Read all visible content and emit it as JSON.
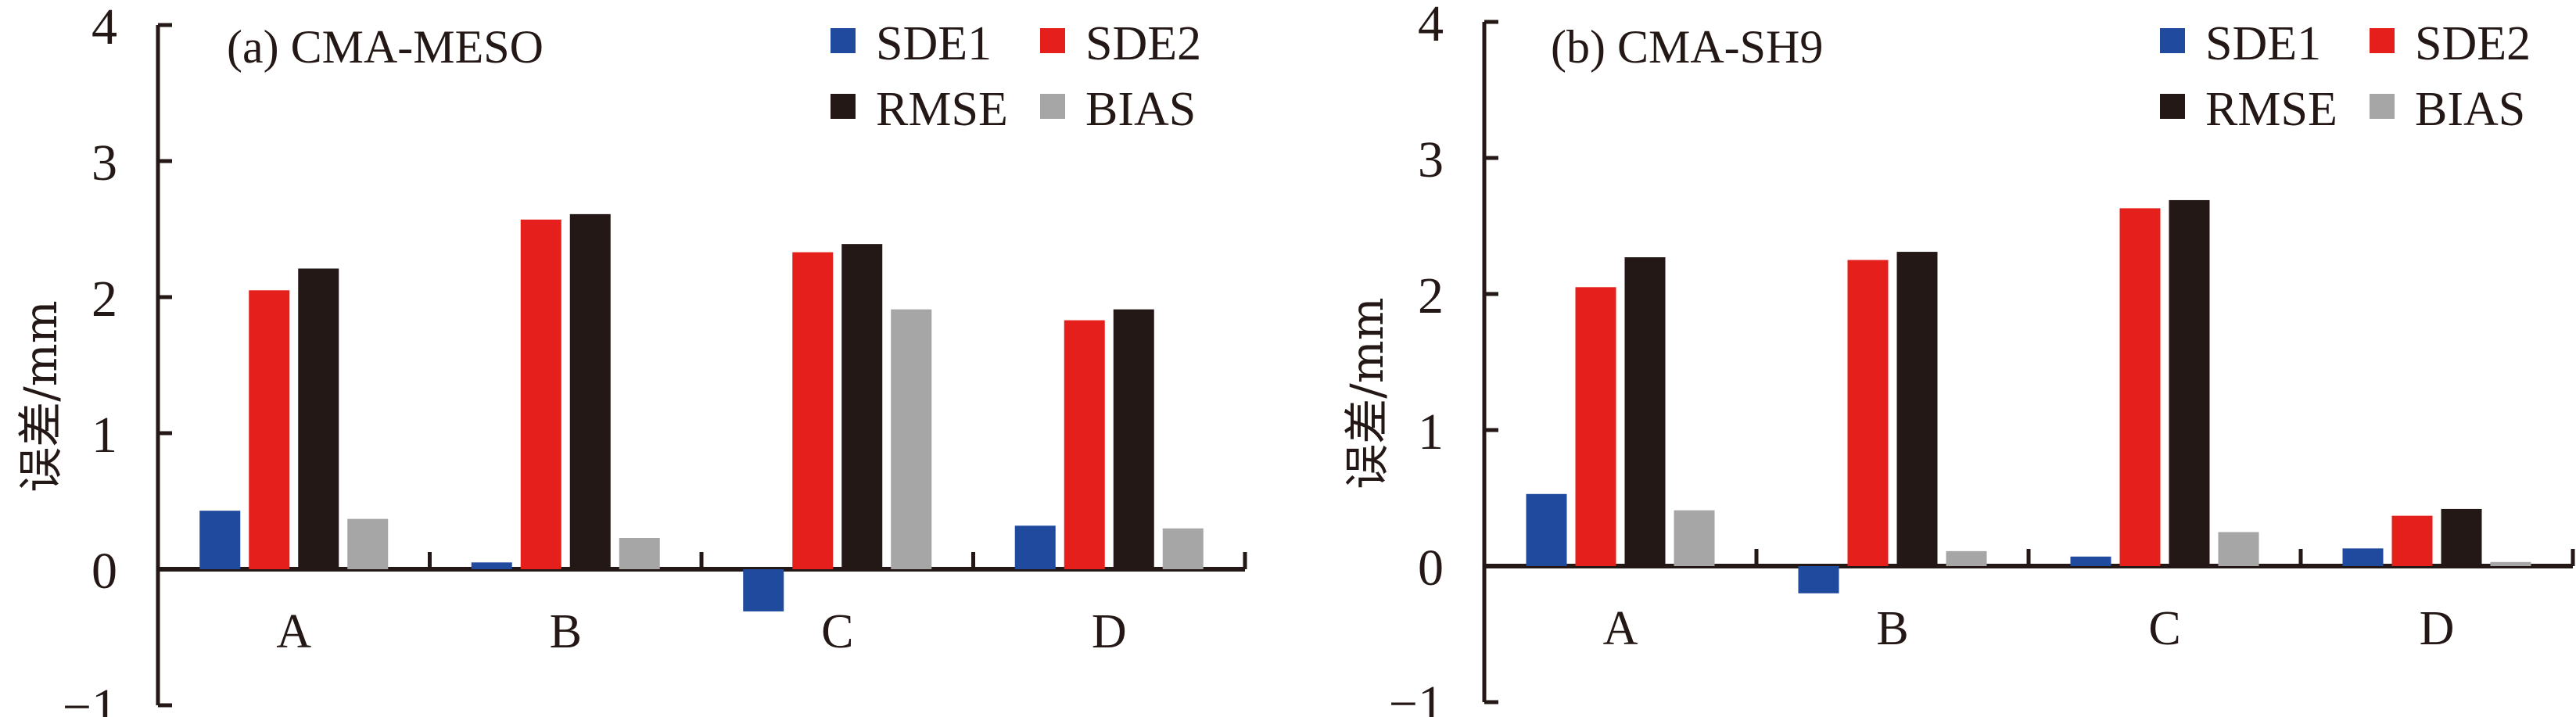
{
  "chart_data": [
    {
      "type": "bar",
      "title": "(a) CMA-MESO",
      "xlabel": "",
      "ylabel": "误差/mm",
      "ylim": [
        -1,
        4
      ],
      "yticks": [
        -1,
        0,
        1,
        2,
        3,
        4
      ],
      "ytick_labels": [
        "−1",
        "0",
        "1",
        "2",
        "3",
        "4"
      ],
      "categories": [
        "A",
        "B",
        "C",
        "D"
      ],
      "legend_position": "top-right",
      "grid": false,
      "series": [
        {
          "name": "SDE1",
          "color": "#1F4A9E",
          "values": [
            0.43,
            0.05,
            -0.31,
            0.32
          ]
        },
        {
          "name": "SDE2",
          "color": "#E5201C",
          "values": [
            2.05,
            2.57,
            2.33,
            1.83
          ]
        },
        {
          "name": "RMSE",
          "color": "#231815",
          "values": [
            2.21,
            2.61,
            2.39,
            1.91
          ]
        },
        {
          "name": "BIAS",
          "color": "#A6A6A6",
          "values": [
            0.37,
            0.23,
            1.91,
            0.3
          ]
        }
      ]
    },
    {
      "type": "bar",
      "title": "(b) CMA-SH9",
      "xlabel": "",
      "ylabel": "误差/mm",
      "ylim": [
        -1,
        4
      ],
      "yticks": [
        -1,
        0,
        1,
        2,
        3,
        4
      ],
      "ytick_labels": [
        "−1",
        "0",
        "1",
        "2",
        "3",
        "4"
      ],
      "categories": [
        "A",
        "B",
        "C",
        "D"
      ],
      "legend_position": "top-right",
      "grid": false,
      "series": [
        {
          "name": "SDE1",
          "color": "#1F4A9E",
          "values": [
            0.53,
            -0.2,
            0.07,
            0.13
          ]
        },
        {
          "name": "SDE2",
          "color": "#E5201C",
          "values": [
            2.05,
            2.25,
            2.63,
            0.37
          ]
        },
        {
          "name": "RMSE",
          "color": "#231815",
          "values": [
            2.27,
            2.31,
            2.69,
            0.42
          ]
        },
        {
          "name": "BIAS",
          "color": "#A6A6A6",
          "values": [
            0.41,
            0.11,
            0.25,
            0.03
          ]
        }
      ]
    }
  ]
}
